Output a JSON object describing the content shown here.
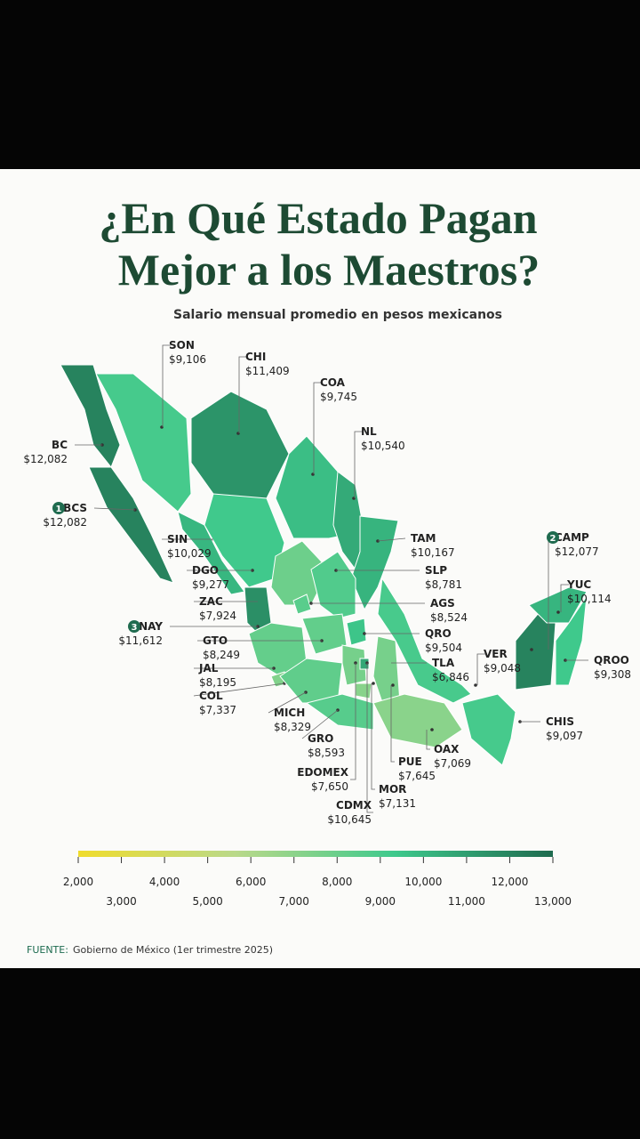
{
  "header": {
    "title_lines": [
      "¿En Qué Estado Pagan",
      "Mejor a los Maestros?"
    ],
    "subtitle": "Salario mensual promedio en pesos mexicanos"
  },
  "states": [
    {
      "code": "SON",
      "salary": {
        "value": 9106,
        "label": "$9,106"
      }
    },
    {
      "code": "CHI",
      "salary": {
        "value": 11409,
        "label": "$11,409"
      }
    },
    {
      "code": "COA",
      "salary": {
        "value": 9745,
        "label": "$9,745"
      }
    },
    {
      "code": "NL",
      "salary": {
        "value": 10540,
        "label": "$10,540"
      }
    },
    {
      "code": "BC",
      "salary": {
        "value": 12082,
        "label": "$12,082"
      }
    },
    {
      "code": "BCS",
      "salary": {
        "value": 12082,
        "label": "$12,082"
      },
      "rank": "1"
    },
    {
      "code": "TAM",
      "salary": {
        "value": 10167,
        "label": "$10,167"
      }
    },
    {
      "code": "SIN",
      "salary": {
        "value": 10029,
        "label": "$10,029"
      }
    },
    {
      "code": "DGO",
      "salary": {
        "value": 9277,
        "label": "$9,277"
      }
    },
    {
      "code": "ZAC",
      "salary": {
        "value": 7924,
        "label": "$7,924"
      }
    },
    {
      "code": "SLP",
      "salary": {
        "value": 8781,
        "label": "$8,781"
      }
    },
    {
      "code": "AGS",
      "salary": {
        "value": 8524,
        "label": "$8,524"
      }
    },
    {
      "code": "NAY",
      "salary": {
        "value": 11612,
        "label": "$11,612"
      },
      "rank": "3"
    },
    {
      "code": "QRO",
      "salary": {
        "value": 9504,
        "label": "$9,504"
      }
    },
    {
      "code": "GTO",
      "salary": {
        "value": 8249,
        "label": "$8,249"
      }
    },
    {
      "code": "TLA",
      "salary": {
        "value": 6846,
        "label": "$6,846"
      }
    },
    {
      "code": "JAL",
      "salary": {
        "value": 8195,
        "label": "$8,195"
      }
    },
    {
      "code": "COL",
      "salary": {
        "value": 7337,
        "label": "$7,337"
      }
    },
    {
      "code": "MICH",
      "salary": {
        "value": 8329,
        "label": "$8,329"
      }
    },
    {
      "code": "GRO",
      "salary": {
        "value": 8593,
        "label": "$8,593"
      }
    },
    {
      "code": "EDOMEX",
      "salary": {
        "value": 7650,
        "label": "$7,650"
      }
    },
    {
      "code": "PUE",
      "salary": {
        "value": 7645,
        "label": "$7,645"
      }
    },
    {
      "code": "MOR",
      "salary": {
        "value": 7131,
        "label": "$7,131"
      }
    },
    {
      "code": "CDMX",
      "salary": {
        "value": 10645,
        "label": "$10,645"
      }
    },
    {
      "code": "OAX",
      "salary": {
        "value": 7069,
        "label": "$7,069"
      }
    },
    {
      "code": "CAMP",
      "salary": {
        "value": 12077,
        "label": "$12,077"
      },
      "rank": "2"
    },
    {
      "code": "YUC",
      "salary": {
        "value": 10114,
        "label": "$10,114"
      }
    },
    {
      "code": "VER",
      "salary": {
        "value": 9048,
        "label": "$9,048"
      }
    },
    {
      "code": "QROO",
      "salary": {
        "value": 9308,
        "label": "$9,308"
      }
    },
    {
      "code": "CHIS",
      "salary": {
        "value": 9097,
        "label": "$9,097"
      }
    }
  ],
  "legend": {
    "scale_colors": [
      "#f0dc2c",
      "#b9d98a",
      "#3ec98c",
      "#1f6b4f"
    ],
    "ticks": [
      {
        "value": 2000,
        "label": "2,000"
      },
      {
        "value": 3000,
        "label": "3,000"
      },
      {
        "value": 4000,
        "label": "4,000"
      },
      {
        "value": 5000,
        "label": "5,000"
      },
      {
        "value": 6000,
        "label": "6,000"
      },
      {
        "value": 7000,
        "label": "7,000"
      },
      {
        "value": 8000,
        "label": "8,000"
      },
      {
        "value": 9000,
        "label": "9,000"
      },
      {
        "value": 10000,
        "label": "10,000"
      },
      {
        "value": 11000,
        "label": "11,000"
      },
      {
        "value": 12000,
        "label": "12,000"
      },
      {
        "value": 13000,
        "label": "13,000"
      }
    ]
  },
  "footer": {
    "source_label": "FUENTE:",
    "source": "Gobierno de México (1er trimestre 2025)"
  }
}
